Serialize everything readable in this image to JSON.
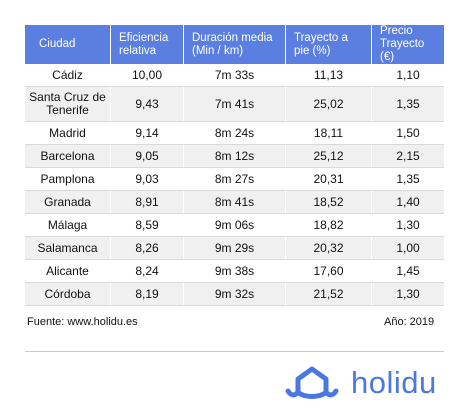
{
  "table": {
    "headers": [
      "Ciudad",
      "Eficiencia relativa",
      "Duración media (Min / km)",
      "Trayecto a pie (%)",
      "Precio Trayecto  (€)"
    ],
    "rows": [
      [
        "Cádiz",
        "10,00",
        "7m 33s",
        "11,13",
        "1,10"
      ],
      [
        "Santa Cruz de Tenerife",
        "9,43",
        "7m 41s",
        "25,02",
        "1,35"
      ],
      [
        "Madrid",
        "9,14",
        "8m 24s",
        "18,11",
        "1,50"
      ],
      [
        "Barcelona",
        "9,05",
        "8m 12s",
        "25,12",
        "2,15"
      ],
      [
        "Pamplona",
        "9,03",
        "8m 27s",
        "20,31",
        "1,35"
      ],
      [
        "Granada",
        "8,91",
        "8m 41s",
        "18,52",
        "1,40"
      ],
      [
        "Málaga",
        "8,59",
        "9m 06s",
        "18,82",
        "1,30"
      ],
      [
        "Salamanca",
        "8,26",
        "9m 29s",
        "20,32",
        "1,00"
      ],
      [
        "Alicante",
        "8,24",
        "9m 38s",
        "17,60",
        "1,45"
      ],
      [
        "Córdoba",
        "8,19",
        "9m 32s",
        "21,52",
        "1,30"
      ]
    ]
  },
  "footer": {
    "source": "Fuente: www.holidu.es",
    "year": "Año: 2019"
  },
  "logo": {
    "text": "holidu",
    "icon": "house-wave-icon",
    "color": "#4a78e0"
  },
  "colors": {
    "header_bg": "#5b7fe0",
    "row_shade": "#f0f0f0"
  }
}
